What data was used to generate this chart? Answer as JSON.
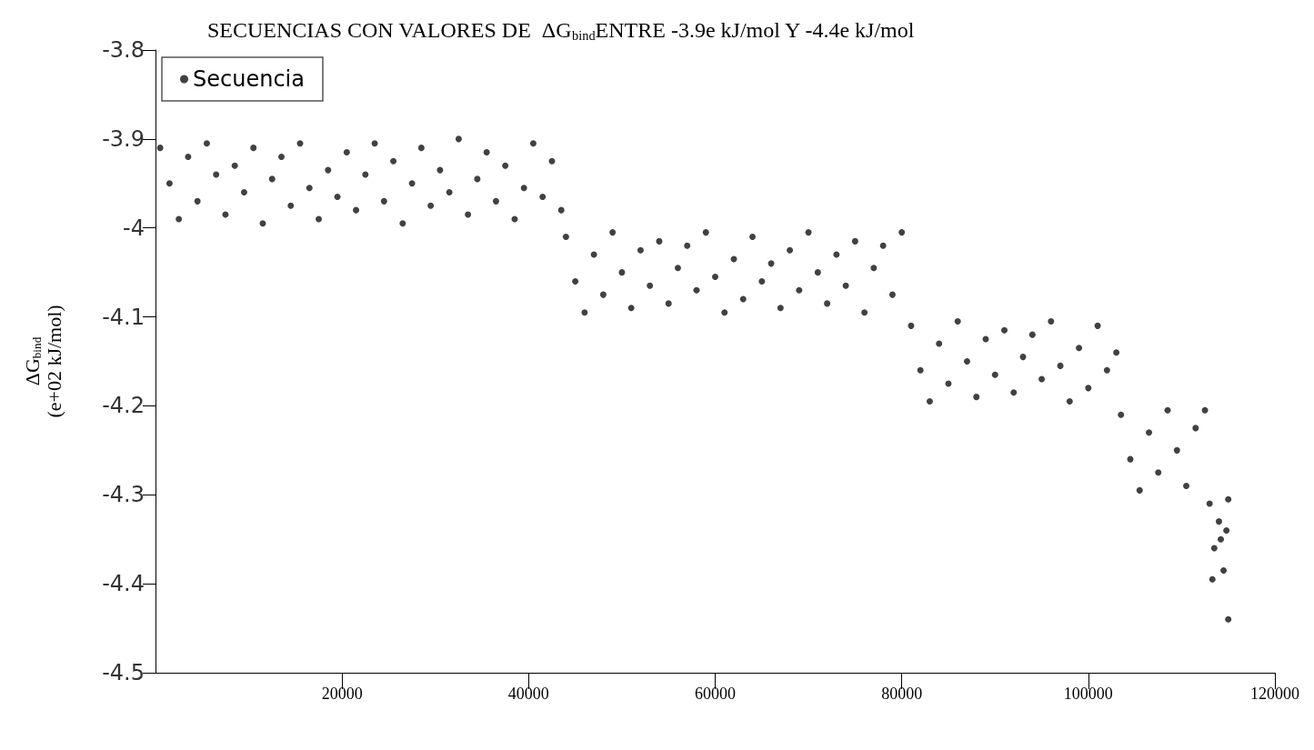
{
  "chart_data": {
    "type": "scatter",
    "title": "SECUENCIAS CON VALORES DE  ΔG$_{bind}$ENTRE -3.9e kJ/mol Y -4.4e kJ/mol",
    "ylabel": "ΔG$_{bind}$\n(e+02 kJ/mol)",
    "xlim": [
      0,
      120000
    ],
    "xticks": [
      20000,
      40000,
      60000,
      80000,
      100000,
      120000
    ],
    "ylim": [
      -4.5,
      -3.8
    ],
    "yticks": [
      -4.5,
      -4.4,
      -4.3,
      -4.2,
      -4.1,
      -4,
      -3.9,
      -3.8
    ],
    "grid": false,
    "legend": "top left",
    "marker": "circle",
    "series": [
      {
        "name": "Secuencia",
        "color": "#111111",
        "x": [
          500,
          1500,
          2500,
          3500,
          4500,
          5500,
          6500,
          7500,
          8500,
          9500,
          10500,
          11500,
          12500,
          13500,
          14500,
          15500,
          16500,
          17500,
          18500,
          19500,
          20500,
          21500,
          22500,
          23500,
          24500,
          25500,
          26500,
          27500,
          28500,
          29500,
          30500,
          31500,
          32500,
          33500,
          34500,
          35500,
          36500,
          37500,
          38500,
          39500,
          40500,
          41500,
          42500,
          43500,
          44000,
          45000,
          46000,
          47000,
          48000,
          49000,
          50000,
          51000,
          52000,
          53000,
          54000,
          55000,
          56000,
          57000,
          58000,
          59000,
          60000,
          61000,
          62000,
          63000,
          64000,
          65000,
          66000,
          67000,
          68000,
          69000,
          70000,
          71000,
          72000,
          73000,
          74000,
          75000,
          76000,
          77000,
          78000,
          79000,
          80000,
          81000,
          82000,
          83000,
          84000,
          85000,
          86000,
          87000,
          88000,
          89000,
          90000,
          91000,
          92000,
          93000,
          94000,
          95000,
          96000,
          97000,
          98000,
          99000,
          100000,
          101000,
          102000,
          103000,
          103500,
          104500,
          105500,
          106500,
          107500,
          108500,
          109500,
          110500,
          111500,
          112500,
          113000,
          113500,
          114000,
          114500,
          115000,
          113300,
          114200,
          114800,
          115000
        ],
        "values": [
          -3.91,
          -3.95,
          -3.99,
          -3.92,
          -3.97,
          -3.905,
          -3.94,
          -3.985,
          -3.93,
          -3.96,
          -3.91,
          -3.995,
          -3.945,
          -3.92,
          -3.975,
          -3.905,
          -3.955,
          -3.99,
          -3.935,
          -3.965,
          -3.915,
          -3.98,
          -3.94,
          -3.905,
          -3.97,
          -3.925,
          -3.995,
          -3.95,
          -3.91,
          -3.975,
          -3.935,
          -3.96,
          -3.9,
          -3.985,
          -3.945,
          -3.915,
          -3.97,
          -3.93,
          -3.99,
          -3.955,
          -3.905,
          -3.965,
          -3.925,
          -3.98,
          -4.01,
          -4.06,
          -4.095,
          -4.03,
          -4.075,
          -4.005,
          -4.05,
          -4.09,
          -4.025,
          -4.065,
          -4.015,
          -4.085,
          -4.045,
          -4.02,
          -4.07,
          -4.005,
          -4.055,
          -4.095,
          -4.035,
          -4.08,
          -4.01,
          -4.06,
          -4.04,
          -4.09,
          -4.025,
          -4.07,
          -4.005,
          -4.05,
          -4.085,
          -4.03,
          -4.065,
          -4.015,
          -4.095,
          -4.045,
          -4.02,
          -4.075,
          -4.005,
          -4.11,
          -4.16,
          -4.195,
          -4.13,
          -4.175,
          -4.105,
          -4.15,
          -4.19,
          -4.125,
          -4.165,
          -4.115,
          -4.185,
          -4.145,
          -4.12,
          -4.17,
          -4.105,
          -4.155,
          -4.195,
          -4.135,
          -4.18,
          -4.11,
          -4.16,
          -4.14,
          -4.21,
          -4.26,
          -4.295,
          -4.23,
          -4.275,
          -4.205,
          -4.25,
          -4.29,
          -4.225,
          -4.205,
          -4.31,
          -4.36,
          -4.33,
          -4.385,
          -4.305,
          -4.395,
          -4.35,
          -4.34,
          -4.44
        ]
      }
    ]
  }
}
